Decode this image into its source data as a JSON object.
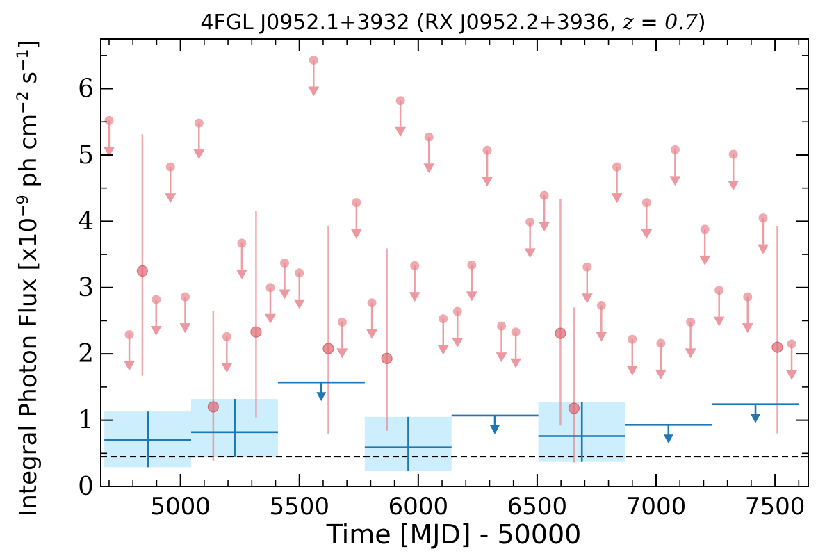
{
  "chart_data": {
    "type": "scatter",
    "title_prefix": "4FGL J0952.1+3932 (RX J0952.2+3936, ",
    "title_math": "z = 0.7",
    "title_suffix": ")",
    "xlabel": "Time [MJD] - 50000",
    "ylabel": "Integral Photon Flux [x10",
    "ylabel_exp": "−9",
    "ylabel_mid": " ph cm",
    "ylabel_exp2": "−2",
    "ylabel_end": " s",
    "ylabel_exp3": "−1",
    "ylabel_close": "]",
    "xlim": [
      4665,
      7640
    ],
    "ylim": [
      0,
      6.75
    ],
    "xticks": [
      "5000",
      "5500",
      "6000",
      "6500",
      "7000",
      "7500"
    ],
    "xtick_values": [
      5000,
      5500,
      6000,
      6500,
      7000,
      7500
    ],
    "yticks": [
      "0",
      "1",
      "2",
      "3",
      "4",
      "5",
      "6"
    ],
    "ytick_values": [
      0,
      1,
      2,
      3,
      4,
      5,
      6
    ],
    "reference_line_y": 0.45,
    "colors": {
      "short_bins": "#e8868f",
      "long_bins": "#1f77b4",
      "long_bins_box": "#cdeefc",
      "reference_line": "#000000"
    },
    "short_bin_upper_limits": [
      {
        "x": 4700,
        "y": 5.52
      },
      {
        "x": 4785,
        "y": 2.29
      },
      {
        "x": 4898,
        "y": 2.82
      },
      {
        "x": 4958,
        "y": 4.82
      },
      {
        "x": 5020,
        "y": 2.86
      },
      {
        "x": 5078,
        "y": 5.48
      },
      {
        "x": 5195,
        "y": 2.26
      },
      {
        "x": 5258,
        "y": 3.67
      },
      {
        "x": 5378,
        "y": 3.0
      },
      {
        "x": 5438,
        "y": 3.37
      },
      {
        "x": 5500,
        "y": 3.22
      },
      {
        "x": 5560,
        "y": 6.43
      },
      {
        "x": 5680,
        "y": 2.48
      },
      {
        "x": 5740,
        "y": 4.28
      },
      {
        "x": 5805,
        "y": 2.77
      },
      {
        "x": 5925,
        "y": 5.82
      },
      {
        "x": 5985,
        "y": 3.33
      },
      {
        "x": 6045,
        "y": 5.27
      },
      {
        "x": 6105,
        "y": 2.53
      },
      {
        "x": 6165,
        "y": 2.64
      },
      {
        "x": 6225,
        "y": 3.34
      },
      {
        "x": 6290,
        "y": 5.07
      },
      {
        "x": 6350,
        "y": 2.42
      },
      {
        "x": 6410,
        "y": 2.33
      },
      {
        "x": 6470,
        "y": 3.99
      },
      {
        "x": 6530,
        "y": 4.39
      },
      {
        "x": 6710,
        "y": 3.31
      },
      {
        "x": 6770,
        "y": 2.73
      },
      {
        "x": 6835,
        "y": 4.82
      },
      {
        "x": 6900,
        "y": 2.22
      },
      {
        "x": 6960,
        "y": 4.28
      },
      {
        "x": 7020,
        "y": 2.16
      },
      {
        "x": 7080,
        "y": 5.08
      },
      {
        "x": 7145,
        "y": 2.48
      },
      {
        "x": 7205,
        "y": 3.88
      },
      {
        "x": 7265,
        "y": 2.96
      },
      {
        "x": 7325,
        "y": 5.01
      },
      {
        "x": 7385,
        "y": 2.86
      },
      {
        "x": 7450,
        "y": 4.05
      },
      {
        "x": 7570,
        "y": 2.15
      }
    ],
    "short_bin_detections": [
      {
        "x": 4840,
        "y": 3.25,
        "ylow": 1.67,
        "yhigh": 5.31
      },
      {
        "x": 5138,
        "y": 1.2,
        "ylow": 0.38,
        "yhigh": 2.65
      },
      {
        "x": 5318,
        "y": 2.33,
        "ylow": 1.04,
        "yhigh": 4.15
      },
      {
        "x": 5622,
        "y": 2.08,
        "ylow": 0.79,
        "yhigh": 3.93
      },
      {
        "x": 5868,
        "y": 1.93,
        "ylow": 0.84,
        "yhigh": 3.59
      },
      {
        "x": 6598,
        "y": 2.31,
        "ylow": 0.92,
        "yhigh": 4.33
      },
      {
        "x": 6655,
        "y": 1.18,
        "ylow": 0.36,
        "yhigh": 2.7
      },
      {
        "x": 7510,
        "y": 2.1,
        "ylow": 0.8,
        "yhigh": 3.93
      }
    ],
    "long_bin_detections": [
      {
        "x": 4863,
        "xlow": 4680,
        "xhigh": 5045,
        "y": 0.7,
        "ylow": 0.29,
        "yhigh": 1.13
      },
      {
        "x": 5228,
        "xlow": 5045,
        "xhigh": 5410,
        "y": 0.82,
        "ylow": 0.45,
        "yhigh": 1.32
      },
      {
        "x": 5958,
        "xlow": 5775,
        "xhigh": 6140,
        "y": 0.59,
        "ylow": 0.24,
        "yhigh": 1.05
      },
      {
        "x": 6688,
        "xlow": 6505,
        "xhigh": 6870,
        "y": 0.76,
        "ylow": 0.37,
        "yhigh": 1.27
      }
    ],
    "long_bin_upper_limits": [
      {
        "x": 5592,
        "xlow": 5410,
        "xhigh": 5775,
        "y": 1.57
      },
      {
        "x": 6322,
        "xlow": 6140,
        "xhigh": 6505,
        "y": 1.07
      },
      {
        "x": 7052,
        "xlow": 6870,
        "xhigh": 7235,
        "y": 0.93
      },
      {
        "x": 7418,
        "xlow": 7235,
        "xhigh": 7600,
        "y": 1.24
      }
    ]
  }
}
